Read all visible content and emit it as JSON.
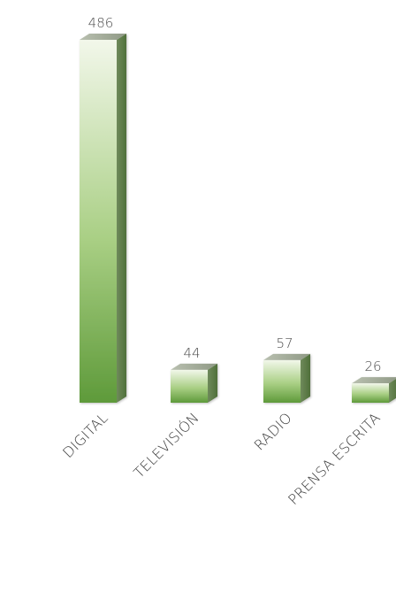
{
  "chart_data": {
    "type": "bar",
    "categories": [
      "DIGITAL",
      "TELEVISIÓN",
      "RADIO",
      "PRENSA ESCRITA"
    ],
    "values": [
      486,
      44,
      57,
      26
    ],
    "title": "",
    "xlabel": "",
    "ylabel": "",
    "ylim": [
      0,
      486
    ],
    "grid": false,
    "legend": "none",
    "colors": {
      "bar_top": "#f2f7ea",
      "bar_bottom": "#5e9a3a",
      "bar_side": "#4f6f3a",
      "bar_cap": "#9aa38f",
      "label": "#3a3a3a"
    }
  }
}
